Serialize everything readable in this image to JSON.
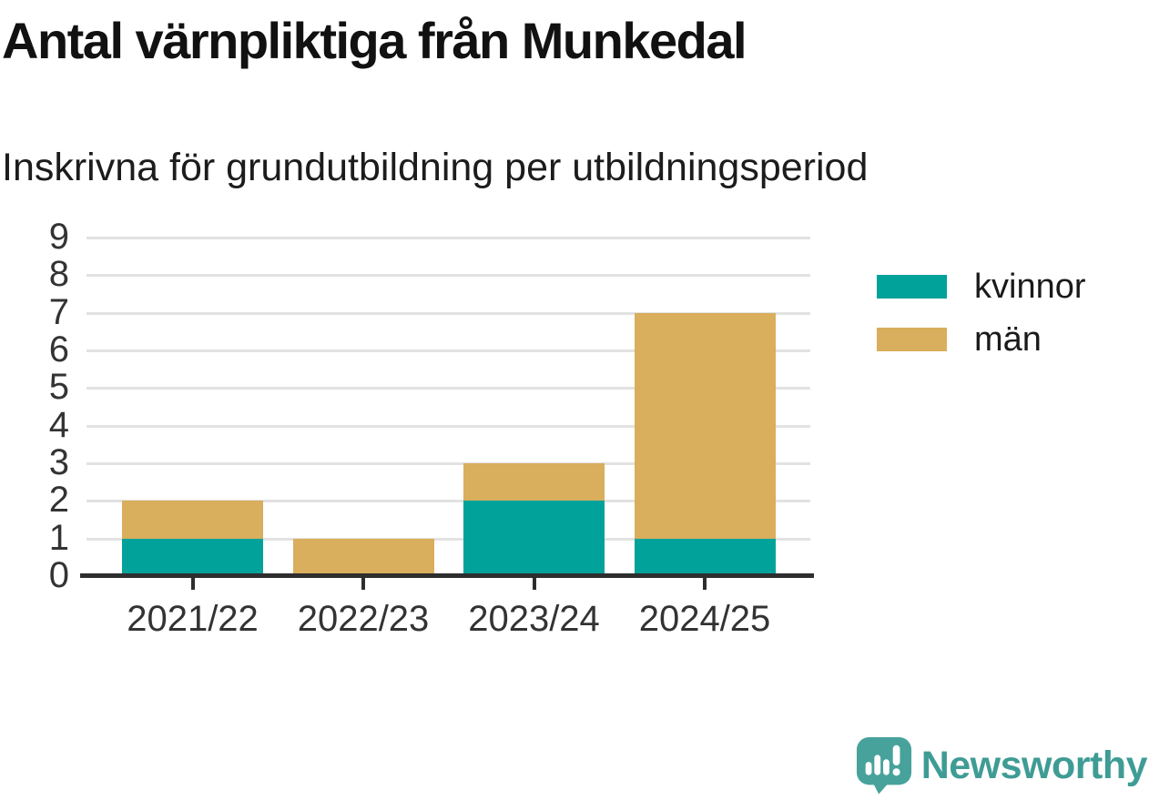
{
  "chart_data": {
    "type": "bar",
    "stacked": true,
    "title": "Antal värnpliktiga från Munkedal",
    "subtitle": "Inskrivna för grundutbildning per utbildningsperiod",
    "categories": [
      "2021/22",
      "2022/23",
      "2023/24",
      "2024/25"
    ],
    "series": [
      {
        "name": "kvinnor",
        "color": "#00a29a",
        "values": [
          1,
          0,
          2,
          1
        ]
      },
      {
        "name": "män",
        "color": "#d9ae5c",
        "values": [
          1,
          1,
          1,
          6
        ]
      }
    ],
    "totals": [
      2,
      1,
      3,
      7
    ],
    "xlabel": "",
    "ylabel": "",
    "ylim": [
      0,
      9
    ],
    "yticks": [
      0,
      1,
      2,
      3,
      4,
      5,
      6,
      7,
      8,
      9
    ],
    "grid": "horizontal",
    "legend_position": "right"
  },
  "branding": {
    "logo_text": "Newsworthy",
    "logo_color": "#3f9c95",
    "icon": "speech-bubble-bar-chart-exclamation"
  }
}
